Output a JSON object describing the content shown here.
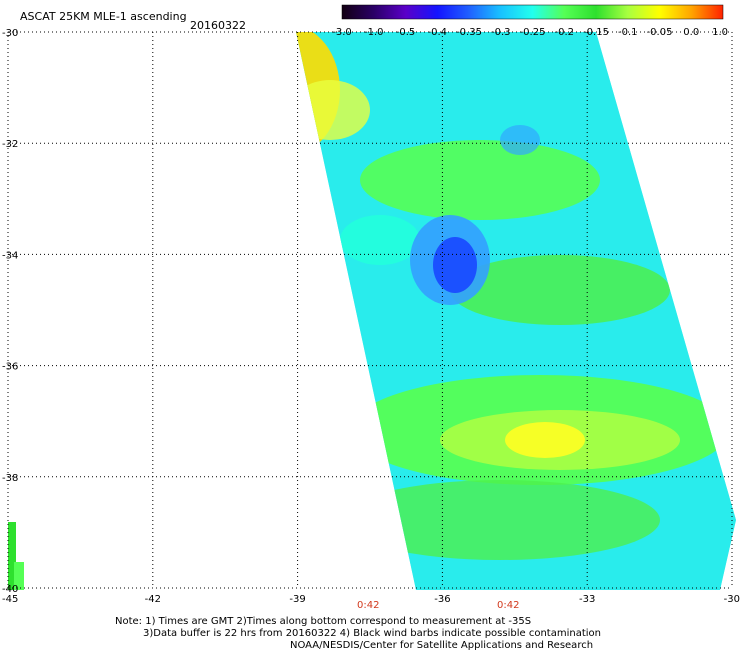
{
  "title": "ASCAT 25KM MLE-1 ascending",
  "date": "20160322",
  "colorbar": {
    "labels": [
      "-3.0",
      "-1.0",
      "-0.5",
      "-0.4",
      "-0.35",
      "-0.3",
      "-0.25",
      "-0.2",
      "-0.15",
      "-0.1",
      "-0.05",
      "0.0",
      "1.0"
    ],
    "colors": [
      "#120012",
      "#2a0066",
      "#5a00c8",
      "#1414ff",
      "#2060ff",
      "#19c2ff",
      "#22ffee",
      "#55ff55",
      "#2ee02e",
      "#a8ff40",
      "#ffff00",
      "#ffa500",
      "#ff2200"
    ]
  },
  "axes": {
    "lon_labels": [
      "-45",
      "-42",
      "-39",
      "-36",
      "-33",
      "-30"
    ],
    "lat_labels": [
      "-30",
      "-32",
      "-34",
      "-36",
      "-38",
      "-40"
    ],
    "lon_values": [
      -45,
      -42,
      -39,
      -36,
      -33,
      -30
    ],
    "lat_values": [
      -30,
      -32,
      -34,
      -36,
      -38,
      -40
    ]
  },
  "times": [
    "0:42",
    "0:42"
  ],
  "notes": {
    "line1": "Note: 1) Times are GMT 2)Times along bottom correspond to measurement at -35S",
    "line2": "3)Data buffer is 22 hrs from 20160322 4) Black wind barbs indicate possible contamination",
    "line3": "NOAA/NESDIS/Center for Satellite Applications and Research"
  }
}
